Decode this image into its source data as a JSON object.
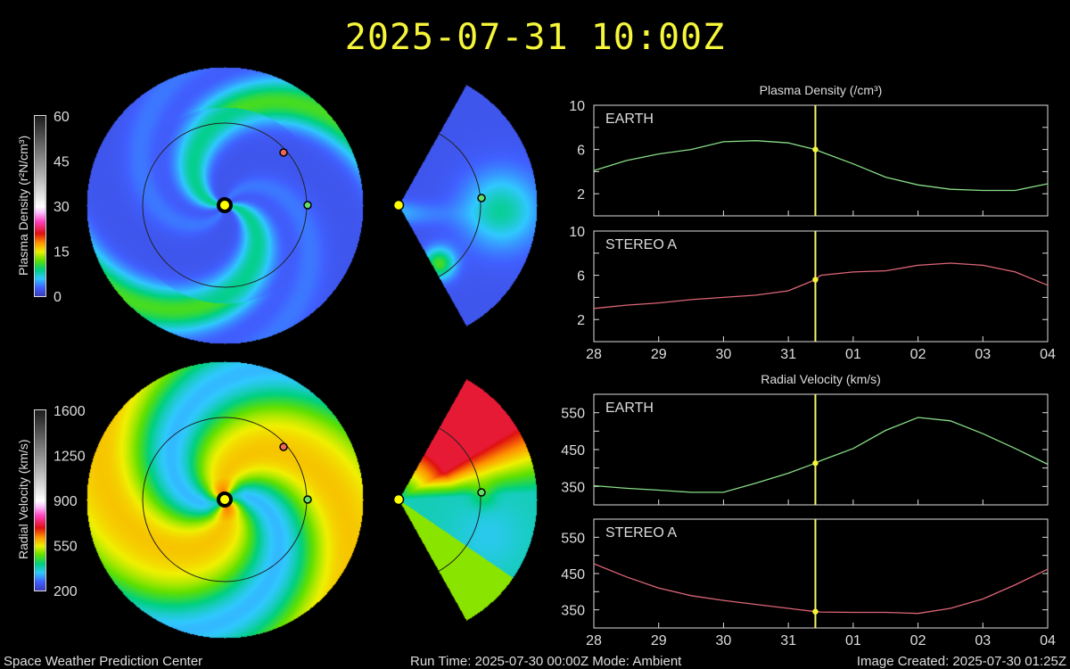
{
  "header": {
    "timestamp": "2025-07-31 10:00Z"
  },
  "footer": {
    "center": "Space Weather Prediction Center",
    "run": "Run Time: 2025-07-30 00:00Z  Mode: Ambient",
    "created": "Image Created: 2025-07-30 01:25Z"
  },
  "colorbars": {
    "density": {
      "label": "Plasma Density (r²N/cm³)",
      "ticks": [
        "0",
        "15",
        "30",
        "45",
        "60"
      ],
      "range": [
        0,
        60
      ]
    },
    "velocity": {
      "label": "Radial Velocity (km/s)",
      "ticks": [
        "200",
        "550",
        "900",
        "1250",
        "1600"
      ],
      "range": [
        200,
        1600
      ]
    },
    "colormap": [
      "#3a3ab8",
      "#4060ff",
      "#30c8ff",
      "#00d080",
      "#60e000",
      "#f0f000",
      "#ff9000",
      "#e01010",
      "#ff40c0",
      "#ffc0ff",
      "#ffffff",
      "#1e1e1e"
    ]
  },
  "markers": {
    "sun": "#ffff00",
    "earth": "#66dd66",
    "stereo_a": "#ee6655"
  },
  "chart_data": [
    {
      "type": "line",
      "title": "Plasma Density (/cm³)",
      "current_time": "2025-07-31T10:00Z",
      "x_ticks": [
        "28",
        "29",
        "30",
        "31",
        "01",
        "02",
        "03",
        "04"
      ],
      "xlim": [
        "2025-07-28T00:00Z",
        "2025-08-04T00:00Z"
      ],
      "x": [
        "2025-07-28T00:00Z",
        "2025-07-28T12:00Z",
        "2025-07-29T00:00Z",
        "2025-07-29T12:00Z",
        "2025-07-30T00:00Z",
        "2025-07-30T12:00Z",
        "2025-07-31T00:00Z",
        "2025-07-31T10:00Z",
        "2025-07-31T12:00Z",
        "2025-08-01T00:00Z",
        "2025-08-01T12:00Z",
        "2025-08-02T00:00Z",
        "2025-08-02T12:00Z",
        "2025-08-03T00:00Z",
        "2025-08-03T12:00Z",
        "2025-08-04T00:00Z"
      ],
      "panels": [
        {
          "name": "EARTH",
          "color": "#88dd88",
          "ylim": [
            0,
            10
          ],
          "y_ticks": [
            "2",
            "6",
            "10"
          ],
          "values": [
            4.1,
            5.0,
            5.6,
            6.0,
            6.7,
            6.8,
            6.6,
            6.0,
            5.8,
            4.7,
            3.5,
            2.8,
            2.4,
            2.3,
            2.3,
            2.9
          ]
        },
        {
          "name": "STEREO A",
          "color": "#dd6677",
          "ylim": [
            0,
            10
          ],
          "y_ticks": [
            "2",
            "6",
            "10"
          ],
          "values": [
            3.0,
            3.3,
            3.5,
            3.8,
            4.0,
            4.2,
            4.6,
            5.6,
            6.0,
            6.3,
            6.4,
            6.9,
            7.1,
            6.9,
            6.3,
            5.1
          ]
        }
      ]
    },
    {
      "type": "line",
      "title": "Radial Velocity (km/s)",
      "current_time": "2025-07-31T10:00Z",
      "x_ticks": [
        "28",
        "29",
        "30",
        "31",
        "01",
        "02",
        "03",
        "04"
      ],
      "xlim": [
        "2025-07-28T00:00Z",
        "2025-08-04T00:00Z"
      ],
      "x": [
        "2025-07-28T00:00Z",
        "2025-07-28T12:00Z",
        "2025-07-29T00:00Z",
        "2025-07-29T12:00Z",
        "2025-07-30T00:00Z",
        "2025-07-30T12:00Z",
        "2025-07-31T00:00Z",
        "2025-07-31T10:00Z",
        "2025-07-31T12:00Z",
        "2025-08-01T00:00Z",
        "2025-08-01T12:00Z",
        "2025-08-02T00:00Z",
        "2025-08-02T12:00Z",
        "2025-08-03T00:00Z",
        "2025-08-03T12:00Z",
        "2025-08-04T00:00Z"
      ],
      "panels": [
        {
          "name": "EARTH",
          "color": "#88dd88",
          "ylim": [
            300,
            600
          ],
          "y_ticks": [
            "350",
            "450",
            "550"
          ],
          "values": [
            352,
            345,
            340,
            334,
            334,
            359,
            386,
            413,
            420,
            453,
            502,
            537,
            528,
            493,
            453,
            410
          ]
        },
        {
          "name": "STEREO A",
          "color": "#dd6677",
          "ylim": [
            300,
            600
          ],
          "y_ticks": [
            "350",
            "450",
            "550"
          ],
          "values": [
            477,
            441,
            410,
            389,
            376,
            365,
            354,
            345,
            344,
            343,
            343,
            340,
            354,
            380,
            419,
            462
          ]
        }
      ]
    }
  ]
}
